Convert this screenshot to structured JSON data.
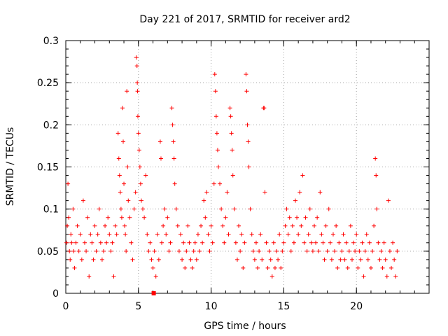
{
  "chart_data": {
    "type": "scatter",
    "title": "Day 221 of 2017, SRMTID for receiver ard2",
    "xlabel": "GPS time / hours",
    "ylabel": "SRMTID / TECUs",
    "xlim": [
      0,
      25
    ],
    "ylim": [
      0,
      0.3
    ],
    "xticks": [
      0,
      5,
      10,
      15,
      20
    ],
    "xtick_labels": [
      "0",
      "5",
      "10",
      "15",
      "20"
    ],
    "yticks": [
      0,
      0.05,
      0.1,
      0.15,
      0.2,
      0.25,
      0.3
    ],
    "ytick_labels": [
      "0",
      "0.05",
      "0.1",
      "0.15",
      "0.2",
      "0.25",
      "0.3"
    ],
    "grid": true,
    "marker": "plus",
    "color": "#ff0000",
    "series": [
      {
        "name": "SRMTID",
        "points": [
          [
            0.05,
            0.06
          ],
          [
            0.1,
            0.08
          ],
          [
            0.15,
            0.13
          ],
          [
            0.2,
            0.09
          ],
          [
            0.25,
            0.05
          ],
          [
            0.3,
            0.04
          ],
          [
            0.35,
            0.07
          ],
          [
            0.4,
            0.06
          ],
          [
            0.5,
            0.1
          ],
          [
            0.55,
            0.05
          ],
          [
            0.6,
            0.03
          ],
          [
            0.7,
            0.06
          ],
          [
            0.8,
            0.08
          ],
          [
            0.9,
            0.05
          ],
          [
            1.0,
            0.07
          ],
          [
            1.1,
            0.04
          ],
          [
            1.2,
            0.11
          ],
          [
            1.3,
            0.06
          ],
          [
            1.4,
            0.05
          ],
          [
            1.5,
            0.09
          ],
          [
            1.6,
            0.02
          ],
          [
            1.7,
            0.07
          ],
          [
            1.8,
            0.06
          ],
          [
            1.9,
            0.04
          ],
          [
            2.0,
            0.08
          ],
          [
            2.1,
            0.05
          ],
          [
            2.2,
            0.07
          ],
          [
            2.3,
            0.1
          ],
          [
            2.4,
            0.06
          ],
          [
            2.5,
            0.04
          ],
          [
            2.6,
            0.05
          ],
          [
            2.7,
            0.08
          ],
          [
            2.8,
            0.06
          ],
          [
            2.9,
            0.09
          ],
          [
            3.0,
            0.07
          ],
          [
            3.1,
            0.05
          ],
          [
            3.2,
            0.06
          ],
          [
            3.3,
            0.02
          ],
          [
            3.4,
            0.08
          ],
          [
            3.5,
            0.07
          ],
          [
            3.6,
            0.19
          ],
          [
            3.65,
            0.16
          ],
          [
            3.7,
            0.14
          ],
          [
            3.75,
            0.12
          ],
          [
            3.8,
            0.1
          ],
          [
            3.85,
            0.09
          ],
          [
            3.9,
            0.22
          ],
          [
            3.95,
            0.18
          ],
          [
            4.0,
            0.13
          ],
          [
            4.05,
            0.08
          ],
          [
            4.1,
            0.07
          ],
          [
            4.15,
            0.05
          ],
          [
            4.2,
            0.24
          ],
          [
            4.25,
            0.15
          ],
          [
            4.3,
            0.11
          ],
          [
            4.4,
            0.09
          ],
          [
            4.5,
            0.06
          ],
          [
            4.6,
            0.04
          ],
          [
            4.7,
            0.1
          ],
          [
            4.8,
            0.12
          ],
          [
            4.85,
            0.28
          ],
          [
            4.9,
            0.27
          ],
          [
            4.92,
            0.25
          ],
          [
            4.94,
            0.24
          ],
          [
            4.96,
            0.21
          ],
          [
            5.0,
            0.19
          ],
          [
            5.05,
            0.17
          ],
          [
            5.1,
            0.15
          ],
          [
            5.15,
            0.13
          ],
          [
            5.2,
            0.11
          ],
          [
            5.3,
            0.1
          ],
          [
            5.4,
            0.09
          ],
          [
            5.5,
            0.14
          ],
          [
            5.6,
            0.07
          ],
          [
            5.7,
            0.05
          ],
          [
            5.8,
            0.06
          ],
          [
            5.9,
            0.04
          ],
          [
            6.0,
            0.03
          ],
          [
            6.1,
            0.05
          ],
          [
            6.2,
            0.02
          ],
          [
            6.3,
            0.07
          ],
          [
            6.4,
            0.04
          ],
          [
            6.5,
            0.18
          ],
          [
            6.55,
            0.16
          ],
          [
            6.6,
            0.06
          ],
          [
            6.7,
            0.08
          ],
          [
            6.8,
            0.1
          ],
          [
            6.9,
            0.07
          ],
          [
            7.0,
            0.09
          ],
          [
            7.1,
            0.05
          ],
          [
            7.2,
            0.06
          ],
          [
            7.3,
            0.22
          ],
          [
            7.35,
            0.2
          ],
          [
            7.4,
            0.18
          ],
          [
            7.45,
            0.16
          ],
          [
            7.5,
            0.13
          ],
          [
            7.6,
            0.1
          ],
          [
            7.7,
            0.08
          ],
          [
            7.8,
            0.05
          ],
          [
            7.9,
            0.07
          ],
          [
            8.0,
            0.04
          ],
          [
            8.1,
            0.06
          ],
          [
            8.2,
            0.03
          ],
          [
            8.3,
            0.05
          ],
          [
            8.4,
            0.08
          ],
          [
            8.5,
            0.06
          ],
          [
            8.6,
            0.04
          ],
          [
            8.7,
            0.03
          ],
          [
            8.8,
            0.05
          ],
          [
            8.9,
            0.06
          ],
          [
            9.0,
            0.04
          ],
          [
            9.1,
            0.07
          ],
          [
            9.2,
            0.05
          ],
          [
            9.3,
            0.08
          ],
          [
            9.4,
            0.06
          ],
          [
            9.5,
            0.11
          ],
          [
            9.6,
            0.09
          ],
          [
            9.7,
            0.12
          ],
          [
            9.8,
            0.07
          ],
          [
            9.9,
            0.05
          ],
          [
            10.0,
            0.08
          ],
          [
            10.1,
            0.06
          ],
          [
            10.2,
            0.13
          ],
          [
            10.25,
            0.26
          ],
          [
            10.3,
            0.24
          ],
          [
            10.35,
            0.21
          ],
          [
            10.4,
            0.19
          ],
          [
            10.45,
            0.17
          ],
          [
            10.5,
            0.15
          ],
          [
            10.6,
            0.13
          ],
          [
            10.7,
            0.1
          ],
          [
            10.8,
            0.08
          ],
          [
            10.9,
            0.06
          ],
          [
            11.0,
            0.09
          ],
          [
            11.1,
            0.12
          ],
          [
            11.2,
            0.07
          ],
          [
            11.3,
            0.22
          ],
          [
            11.35,
            0.21
          ],
          [
            11.4,
            0.19
          ],
          [
            11.45,
            0.17
          ],
          [
            11.5,
            0.14
          ],
          [
            11.6,
            0.1
          ],
          [
            11.7,
            0.06
          ],
          [
            11.8,
            0.04
          ],
          [
            11.9,
            0.08
          ],
          [
            12.0,
            0.05
          ],
          [
            12.1,
            0.07
          ],
          [
            12.2,
            0.03
          ],
          [
            12.3,
            0.06
          ],
          [
            12.4,
            0.26
          ],
          [
            12.45,
            0.24
          ],
          [
            12.5,
            0.2
          ],
          [
            12.55,
            0.18
          ],
          [
            12.6,
            0.15
          ],
          [
            12.7,
            0.1
          ],
          [
            12.8,
            0.07
          ],
          [
            12.9,
            0.05
          ],
          [
            13.0,
            0.04
          ],
          [
            13.1,
            0.06
          ],
          [
            13.2,
            0.03
          ],
          [
            13.3,
            0.05
          ],
          [
            13.4,
            0.07
          ],
          [
            13.5,
            0.04
          ],
          [
            13.6,
            0.22
          ],
          [
            13.65,
            0.22
          ],
          [
            13.7,
            0.12
          ],
          [
            13.8,
            0.06
          ],
          [
            13.9,
            0.03
          ],
          [
            14.0,
            0.05
          ],
          [
            14.1,
            0.04
          ],
          [
            14.2,
            0.02
          ],
          [
            14.3,
            0.06
          ],
          [
            14.4,
            0.03
          ],
          [
            14.5,
            0.05
          ],
          [
            14.6,
            0.04
          ],
          [
            14.7,
            0.07
          ],
          [
            14.8,
            0.03
          ],
          [
            14.9,
            0.05
          ],
          [
            15.0,
            0.06
          ],
          [
            15.1,
            0.08
          ],
          [
            15.2,
            0.1
          ],
          [
            15.3,
            0.07
          ],
          [
            15.4,
            0.09
          ],
          [
            15.5,
            0.05
          ],
          [
            15.6,
            0.08
          ],
          [
            15.7,
            0.06
          ],
          [
            15.8,
            0.11
          ],
          [
            15.9,
            0.09
          ],
          [
            16.0,
            0.07
          ],
          [
            16.1,
            0.12
          ],
          [
            16.2,
            0.08
          ],
          [
            16.3,
            0.14
          ],
          [
            16.4,
            0.06
          ],
          [
            16.5,
            0.09
          ],
          [
            16.6,
            0.05
          ],
          [
            16.7,
            0.07
          ],
          [
            16.8,
            0.1
          ],
          [
            16.9,
            0.06
          ],
          [
            17.0,
            0.05
          ],
          [
            17.1,
            0.08
          ],
          [
            17.2,
            0.06
          ],
          [
            17.3,
            0.09
          ],
          [
            17.4,
            0.05
          ],
          [
            17.5,
            0.12
          ],
          [
            17.6,
            0.07
          ],
          [
            17.7,
            0.06
          ],
          [
            17.8,
            0.04
          ],
          [
            17.9,
            0.08
          ],
          [
            18.0,
            0.05
          ],
          [
            18.1,
            0.1
          ],
          [
            18.2,
            0.06
          ],
          [
            18.3,
            0.04
          ],
          [
            18.4,
            0.07
          ],
          [
            18.5,
            0.05
          ],
          [
            18.6,
            0.08
          ],
          [
            18.7,
            0.03
          ],
          [
            18.8,
            0.06
          ],
          [
            18.9,
            0.04
          ],
          [
            19.0,
            0.05
          ],
          [
            19.1,
            0.07
          ],
          [
            19.2,
            0.04
          ],
          [
            19.3,
            0.06
          ],
          [
            19.4,
            0.03
          ],
          [
            19.5,
            0.05
          ],
          [
            19.6,
            0.08
          ],
          [
            19.7,
            0.04
          ],
          [
            19.8,
            0.06
          ],
          [
            19.9,
            0.05
          ],
          [
            20.0,
            0.07
          ],
          [
            20.1,
            0.03
          ],
          [
            20.2,
            0.05
          ],
          [
            20.3,
            0.04
          ],
          [
            20.4,
            0.06
          ],
          [
            20.5,
            0.02
          ],
          [
            20.6,
            0.05
          ],
          [
            20.7,
            0.07
          ],
          [
            20.8,
            0.04
          ],
          [
            20.9,
            0.06
          ],
          [
            21.0,
            0.03
          ],
          [
            21.1,
            0.05
          ],
          [
            21.2,
            0.08
          ],
          [
            21.3,
            0.16
          ],
          [
            21.35,
            0.14
          ],
          [
            21.4,
            0.1
          ],
          [
            21.5,
            0.06
          ],
          [
            21.6,
            0.04
          ],
          [
            21.7,
            0.05
          ],
          [
            21.8,
            0.03
          ],
          [
            21.9,
            0.06
          ],
          [
            22.0,
            0.04
          ],
          [
            22.1,
            0.02
          ],
          [
            22.2,
            0.11
          ],
          [
            22.3,
            0.05
          ],
          [
            22.4,
            0.03
          ],
          [
            22.5,
            0.06
          ],
          [
            22.6,
            0.04
          ],
          [
            22.7,
            0.02
          ],
          [
            22.8,
            0.05
          ]
        ]
      }
    ],
    "outlier_marker": {
      "x": 6.05,
      "y": 0.0
    }
  }
}
